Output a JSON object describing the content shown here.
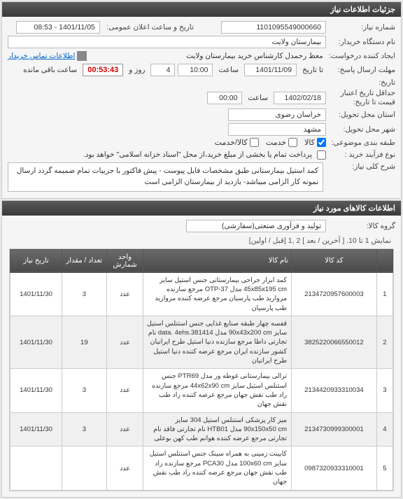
{
  "header": {
    "title": "جزئیات اطلاعات نیاز"
  },
  "form": {
    "need_no_label": "شماره نیاز:",
    "need_no": "1101095549000660",
    "datetime_label": "تاریخ و ساعت اعلان عمومی:",
    "datetime": "1401/11/05 - 08:53",
    "buyer_org_label": "نام دستگاه خریدار:",
    "buyer_org": "بیمارستان ولایت",
    "requester_label": "ایجاد کننده درخواست:",
    "requester": "معظ رحمدل کارشناس خرید بیمارستان ولایت",
    "contact_link": "اطلاعات تماس خریدار",
    "deadline_label": "مهلت ارسال پاسخ:",
    "deadline_date_label": "تا تاریخ",
    "deadline_date": "1401/11/09",
    "deadline_time_label": "ساعت",
    "deadline_time": "10:00",
    "days": "4",
    "days_label": "روز و",
    "countdown": "00:53:43",
    "remain_label": "ساعت باقی مانده",
    "history_label": "تاریخ:",
    "validity_label": "حداقل تاریخ اعتبار",
    "validity_sub": "قیمت تا تاریخ:",
    "validity_date": "1402/02/18",
    "validity_time_label": "ساعت",
    "validity_time": "00:00",
    "province_label": "استان محل تحویل:",
    "province": "خراسان رضوی",
    "city_label": "شهر محل تحویل:",
    "city": "مشهد",
    "class_label": "طبقه بندی موضوعی:",
    "class_goods": "کالا",
    "class_service": "خدمت",
    "class_both": "کالا/خدمت",
    "buy_type_label": "نوع فرآیند خرید :",
    "buy_type_text": "پرداخت تمام یا بخشی از مبلغ خرید،از محل \"اسناد خزانه اسلامی\" خواهد بود.",
    "desc_label": "شرح کلی نیاز:",
    "desc": "کمد استیل بیمارستانی طبق مشخصات فایل پیوست - پیش فاکتور با جزییات تمام ضمیمه گردد ارسال نمونه کار الزامی میباشد- بازدید از بیمارستان الزامی است"
  },
  "items_section": {
    "title": "اطلاعات کالاهای مورد نیاز",
    "group_label": "گروه کالا:",
    "group": "تولید و فرآوری صنعتی(سفارشی)",
    "pager": "نمایش 1 تا 10. [ آخرین / بعد ] 2 ,1 [قبل / اولین]",
    "cols": {
      "num": "",
      "code": "کد کالا",
      "name": "نام کالا",
      "unit": "واحد شمارش",
      "qty": "تعداد / مقدار",
      "date": "تاریخ نیاز"
    },
    "rows": [
      {
        "n": "1",
        "code": "2134720957600003",
        "name": "کمد ابزار جراحی بیمارستانی جنس استیل سایز 45x85x195 cm مدل 37-OTP مرجع سازنده مروارید طب پارسیان مرجع عرضه کننده مروارید طب پارسیان",
        "unit": "عدد",
        "qty": "3",
        "date": "1401/11/30"
      },
      {
        "n": "2",
        "code": "3825220066550012",
        "name": "قفسه چهار طبقه صنایع غذایی جنس استنلس استیل سایز 90x43x200 cm مدل data. 4ehs.381414 نام تجارتی داطا مرجع سازنده دنیا استیل طرح ایرانیان کشور سازنده ایران مرجع عرضه کننده دنیا استیل طرح ایرانیان",
        "unit": "عدد",
        "qty": "19",
        "date": "1401/11/30"
      },
      {
        "n": "3",
        "code": "2134420933310034",
        "name": "ترالی بیمارستانی غوطه ور مدل PTR69 جنس استنلس استیل سایز 44x62x90 cm مرجع سازنده راد طب نقش جهان مرجع عرضه کننده راد طب نقش جهان",
        "unit": "عدد",
        "qty": "3",
        "date": "1401/11/30"
      },
      {
        "n": "4",
        "code": "2134730999300001",
        "name": "میز کار پزشکی استنلس استیل 304 سایز 90x150x50 cm مدل HTB01 نام تجارتی فاقد نام تجارتی مرجع عرضه کننده هوانم طب کهن بوعلی",
        "unit": "عدد",
        "qty": "3",
        "date": "1401/11/30"
      },
      {
        "n": "5",
        "code": "0987320933310001",
        "name": "کابینت زمینی به همراه سینک جنس استنلس استیل سایز 100x60 cm مدل PCA30 مرجع سازنده راد طب نقش جهان مرجع عرضه کننده راد طب نقش جهان",
        "unit": "عدد",
        "qty": "",
        "date": ""
      }
    ]
  }
}
